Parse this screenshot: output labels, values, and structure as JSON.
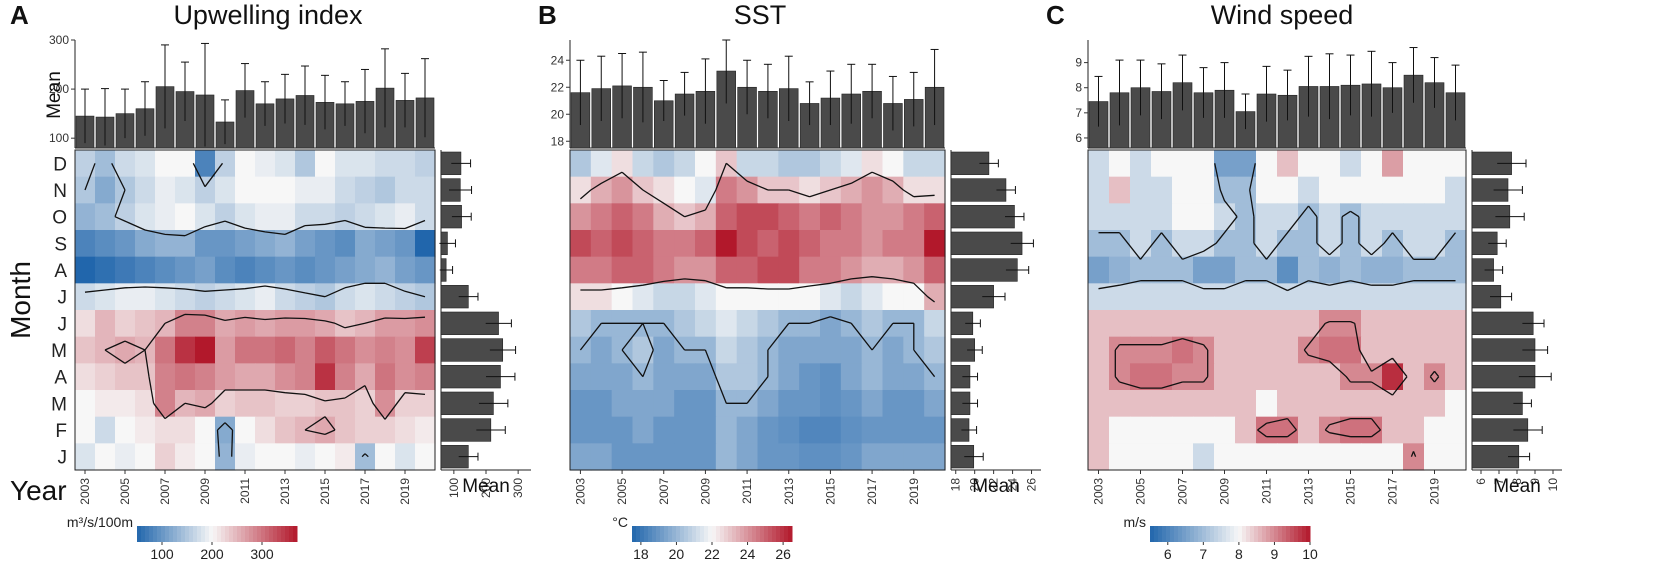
{
  "figure_labels": {
    "month_axis_label": "Month",
    "year_axis_label": "Year",
    "top_axis_label": "Mean",
    "side_axis_label": "Mean"
  },
  "chart_data": [
    {
      "letter": "A",
      "type": "heatmap",
      "title": "Upwelling index",
      "years": [
        "2003",
        "2004",
        "2005",
        "2006",
        "2007",
        "2008",
        "2009",
        "2010",
        "2011",
        "2012",
        "2013",
        "2014",
        "2015",
        "2016",
        "2017",
        "2018",
        "2019",
        "2020"
      ],
      "year_tick_labels": [
        "2003",
        "2005",
        "2007",
        "2009",
        "2011",
        "2013",
        "2015",
        "2017",
        "2019"
      ],
      "months": [
        "D",
        "N",
        "O",
        "S",
        "A",
        "J",
        "J",
        "M",
        "A",
        "M",
        "F",
        "J"
      ],
      "values": [
        [
          160,
          140,
          170,
          180,
          200,
          200,
          80,
          160,
          200,
          190,
          180,
          150,
          200,
          180,
          180,
          170,
          170,
          160
        ],
        [
          150,
          120,
          150,
          170,
          190,
          180,
          160,
          180,
          200,
          200,
          200,
          190,
          190,
          170,
          160,
          150,
          170,
          170
        ],
        [
          130,
          140,
          160,
          180,
          190,
          200,
          180,
          160,
          180,
          190,
          190,
          170,
          170,
          160,
          170,
          180,
          190,
          170
        ],
        [
          80,
          90,
          100,
          120,
          130,
          130,
          100,
          100,
          110,
          120,
          130,
          110,
          100,
          90,
          120,
          110,
          100,
          30
        ],
        [
          50,
          60,
          70,
          80,
          90,
          100,
          110,
          90,
          80,
          90,
          100,
          90,
          100,
          110,
          120,
          130,
          110,
          100
        ],
        [
          170,
          180,
          190,
          190,
          180,
          170,
          160,
          170,
          180,
          190,
          170,
          160,
          150,
          170,
          180,
          170,
          160,
          150
        ],
        [
          220,
          250,
          230,
          240,
          250,
          290,
          290,
          260,
          270,
          260,
          270,
          270,
          260,
          240,
          250,
          270,
          270,
          280
        ],
        [
          240,
          250,
          260,
          250,
          300,
          350,
          370,
          270,
          300,
          300,
          310,
          290,
          320,
          300,
          280,
          290,
          280,
          340
        ],
        [
          220,
          230,
          240,
          240,
          290,
          300,
          290,
          270,
          260,
          260,
          280,
          290,
          350,
          290,
          260,
          300,
          280,
          290
        ],
        [
          200,
          210,
          210,
          220,
          290,
          250,
          260,
          230,
          240,
          240,
          230,
          230,
          240,
          240,
          230,
          280,
          230,
          230
        ],
        [
          200,
          170,
          200,
          210,
          220,
          220,
          200,
          120,
          200,
          220,
          240,
          250,
          260,
          240,
          230,
          230,
          220,
          210
        ],
        [
          180,
          200,
          190,
          200,
          230,
          210,
          200,
          130,
          190,
          200,
          200,
          190,
          200,
          210,
          140,
          200,
          180,
          200
        ]
      ],
      "contours": [
        {
          "level": 150,
          "label": "lower contour"
        },
        {
          "level": 250,
          "label": "upper contour"
        }
      ],
      "colorscale": {
        "min": 50,
        "max": 370,
        "mid": 200,
        "low": "#2166ac",
        "midcolor": "#f7f7f7",
        "high": "#b2182b"
      },
      "legend_label": "m³/s/100m",
      "legend_ticks": [
        "100",
        "200",
        "300"
      ],
      "top_bars": {
        "ylabel": "Mean",
        "ylim": [
          80,
          300
        ],
        "ticks": [
          "100",
          "200",
          "300"
        ],
        "values": [
          145,
          143,
          150,
          160,
          205,
          195,
          188,
          133,
          197,
          170,
          180,
          187,
          173,
          170,
          175,
          202,
          177,
          182
        ],
        "errors": [
          55,
          58,
          50,
          55,
          85,
          60,
          105,
          45,
          55,
          45,
          50,
          60,
          55,
          45,
          65,
          80,
          55,
          80
        ]
      },
      "side_bars": {
        "xlabel": "Mean",
        "xlim": [
          60,
          340
        ],
        "ticks": [
          "100",
          "200",
          "300"
        ],
        "values": [
          122,
          120,
          124,
          80,
          76,
          145,
          239,
          252,
          245,
          223,
          215,
          145
        ],
        "errors": [
          30,
          35,
          30,
          25,
          20,
          30,
          40,
          40,
          45,
          45,
          45,
          30
        ]
      }
    },
    {
      "letter": "B",
      "type": "heatmap",
      "title": "SST",
      "years": [
        "2003",
        "2004",
        "2005",
        "2006",
        "2007",
        "2008",
        "2009",
        "2010",
        "2011",
        "2012",
        "2013",
        "2014",
        "2015",
        "2016",
        "2017",
        "2018",
        "2019",
        "2020"
      ],
      "year_tick_labels": [
        "2003",
        "2005",
        "2007",
        "2009",
        "2011",
        "2013",
        "2015",
        "2017",
        "2019"
      ],
      "months": [
        "D",
        "N",
        "O",
        "S",
        "A",
        "J",
        "J",
        "M",
        "A",
        "M",
        "F",
        "J"
      ],
      "values": [
        [
          20.5,
          21.5,
          22.5,
          21.0,
          20.5,
          21.0,
          22.0,
          23.0,
          21.0,
          21.0,
          20.5,
          20.5,
          21.0,
          21.5,
          22.5,
          22.0,
          21.0,
          21.0
        ],
        [
          22.5,
          23.5,
          24.0,
          23.0,
          22.5,
          22.0,
          21.5,
          24.5,
          24.0,
          23.0,
          23.0,
          22.5,
          23.0,
          23.5,
          24.0,
          23.5,
          22.5,
          22.5
        ],
        [
          24.0,
          24.5,
          25.0,
          24.5,
          23.5,
          23.0,
          23.5,
          25.0,
          25.5,
          25.5,
          25.0,
          24.5,
          25.0,
          24.5,
          24.0,
          24.0,
          24.5,
          25.0
        ],
        [
          25.5,
          25.0,
          25.5,
          25.0,
          24.5,
          24.5,
          25.0,
          26.5,
          25.5,
          25.0,
          25.5,
          25.0,
          24.5,
          24.5,
          24.0,
          24.5,
          24.5,
          26.5
        ],
        [
          24.5,
          24.5,
          25.0,
          25.0,
          24.5,
          24.0,
          24.0,
          25.0,
          25.0,
          25.5,
          25.5,
          24.5,
          24.5,
          24.0,
          23.5,
          23.5,
          24.0,
          25.0
        ],
        [
          22.5,
          22.5,
          22.0,
          21.5,
          21.0,
          21.0,
          21.5,
          22.0,
          22.0,
          22.0,
          22.0,
          22.0,
          21.5,
          21.0,
          21.5,
          22.0,
          22.0,
          23.5
        ],
        [
          20.5,
          20.0,
          20.0,
          20.0,
          20.0,
          20.5,
          21.0,
          21.5,
          21.0,
          20.5,
          20.0,
          20.0,
          19.5,
          20.0,
          20.5,
          20.0,
          20.0,
          21.0
        ],
        [
          20.0,
          19.5,
          20.0,
          20.5,
          19.5,
          20.0,
          20.0,
          21.0,
          20.5,
          20.0,
          19.5,
          19.5,
          19.5,
          19.5,
          20.0,
          19.5,
          20.0,
          20.5
        ],
        [
          19.5,
          19.5,
          19.5,
          20.0,
          19.5,
          19.5,
          19.5,
          20.5,
          20.5,
          20.0,
          19.5,
          19.0,
          18.8,
          19.5,
          20.0,
          19.5,
          19.5,
          20.0
        ],
        [
          19.0,
          19.0,
          19.5,
          19.5,
          19.5,
          19.0,
          19.0,
          20.0,
          20.0,
          19.5,
          19.0,
          19.0,
          18.8,
          19.0,
          19.5,
          19.0,
          19.0,
          19.5
        ],
        [
          19.0,
          19.0,
          19.0,
          19.5,
          19.0,
          19.0,
          19.0,
          20.0,
          19.5,
          19.0,
          18.8,
          18.5,
          18.5,
          18.8,
          19.0,
          19.0,
          19.0,
          19.0
        ],
        [
          19.5,
          19.5,
          19.0,
          19.0,
          19.0,
          19.0,
          19.0,
          20.0,
          19.5,
          19.0,
          19.0,
          18.8,
          18.8,
          19.0,
          19.5,
          19.5,
          19.5,
          19.5
        ]
      ],
      "contours": [
        {
          "level": 20,
          "label": "lower contour"
        },
        {
          "level": 23,
          "label": "upper contour"
        }
      ],
      "colorscale": {
        "min": 17.5,
        "max": 26.5,
        "mid": 22,
        "low": "#2166ac",
        "midcolor": "#f7f7f7",
        "high": "#b2182b"
      },
      "legend_label": "°C",
      "legend_ticks": [
        "18",
        "20",
        "22",
        "24",
        "26"
      ],
      "top_bars": {
        "ylabel": "",
        "ylim": [
          17.5,
          25.5
        ],
        "ticks": [
          "18",
          "20",
          "22",
          "24"
        ],
        "values": [
          21.6,
          21.9,
          22.1,
          22.0,
          21.0,
          21.5,
          21.7,
          23.2,
          22.0,
          21.7,
          21.9,
          20.8,
          21.2,
          21.5,
          21.7,
          20.8,
          21.1,
          22.0
        ],
        "errors": [
          2.4,
          2.4,
          2.4,
          2.6,
          1.5,
          1.6,
          2.4,
          2.4,
          2.0,
          2.0,
          2.4,
          1.6,
          2.0,
          2.2,
          2.0,
          2.0,
          2.0,
          2.8
        ]
      },
      "side_bars": {
        "xlabel": "Mean",
        "xlim": [
          17.5,
          27
        ],
        "ticks": [
          "18",
          "20",
          "22",
          "24",
          "26"
        ],
        "values": [
          21.5,
          23.3,
          24.2,
          25.0,
          24.5,
          22.0,
          19.8,
          20.0,
          19.5,
          19.5,
          19.4,
          19.9
        ],
        "errors": [
          1.0,
          1.0,
          1.0,
          1.2,
          1.2,
          1.2,
          0.8,
          0.8,
          0.8,
          0.8,
          0.8,
          1.0
        ]
      }
    },
    {
      "letter": "C",
      "type": "heatmap",
      "title": "Wind speed",
      "years": [
        "2003",
        "2004",
        "2005",
        "2006",
        "2007",
        "2008",
        "2009",
        "2010",
        "2011",
        "2012",
        "2013",
        "2014",
        "2015",
        "2016",
        "2017",
        "2018",
        "2019",
        "2020"
      ],
      "year_tick_labels": [
        "2003",
        "2005",
        "2007",
        "2009",
        "2011",
        "2013",
        "2015",
        "2017",
        "2019"
      ],
      "months": [
        "D",
        "N",
        "O",
        "S",
        "A",
        "J",
        "J",
        "M",
        "A",
        "M",
        "F",
        "J"
      ],
      "values": [
        [
          7.5,
          8.0,
          7.5,
          8.0,
          8.0,
          8.0,
          6.5,
          6.5,
          8.0,
          8.5,
          8.0,
          8.0,
          7.5,
          8.0,
          8.8,
          8.0,
          8.0,
          8.0
        ],
        [
          7.5,
          8.5,
          7.5,
          7.5,
          8.0,
          8.0,
          7.0,
          7.0,
          8.0,
          8.0,
          7.5,
          8.0,
          8.0,
          8.0,
          8.0,
          8.0,
          8.0,
          7.5
        ],
        [
          7.5,
          7.5,
          7.5,
          7.5,
          8.0,
          8.0,
          7.5,
          7.0,
          7.5,
          7.5,
          7.0,
          7.5,
          7.0,
          7.5,
          7.5,
          7.5,
          7.5,
          7.5
        ],
        [
          7.0,
          7.0,
          7.5,
          7.0,
          7.5,
          7.5,
          7.0,
          7.0,
          7.5,
          7.0,
          7.0,
          7.5,
          7.0,
          7.5,
          7.0,
          7.5,
          7.5,
          7.0
        ],
        [
          6.5,
          6.8,
          7.0,
          7.0,
          7.0,
          6.5,
          6.5,
          7.0,
          7.0,
          6.2,
          7.0,
          6.8,
          7.0,
          6.8,
          6.8,
          7.0,
          7.0,
          7.0
        ],
        [
          7.5,
          7.5,
          7.5,
          7.5,
          7.5,
          7.5,
          7.5,
          7.5,
          7.5,
          7.5,
          7.5,
          7.5,
          7.5,
          7.5,
          7.5,
          7.5,
          7.5,
          7.5
        ],
        [
          8.5,
          8.5,
          8.5,
          8.5,
          8.5,
          8.5,
          8.5,
          8.5,
          8.5,
          8.5,
          8.5,
          9.0,
          9.0,
          8.5,
          8.5,
          8.5,
          8.5,
          8.5
        ],
        [
          8.5,
          9.0,
          9.0,
          9.0,
          9.2,
          9.0,
          8.5,
          8.5,
          8.5,
          8.5,
          9.0,
          9.2,
          9.2,
          8.5,
          8.5,
          8.5,
          8.5,
          8.5
        ],
        [
          8.5,
          9.0,
          9.2,
          9.2,
          9.0,
          9.0,
          8.5,
          8.5,
          8.5,
          8.5,
          8.5,
          8.5,
          9.0,
          9.0,
          9.8,
          8.5,
          9.0,
          8.5
        ],
        [
          8.5,
          8.5,
          8.5,
          8.5,
          8.5,
          8.5,
          8.5,
          8.5,
          8.0,
          8.5,
          8.5,
          8.5,
          8.5,
          8.5,
          8.5,
          8.5,
          8.5,
          8.0
        ],
        [
          8.5,
          8.0,
          8.0,
          8.0,
          8.0,
          8.0,
          8.0,
          8.5,
          9.2,
          9.2,
          8.5,
          9.0,
          9.2,
          9.2,
          8.5,
          8.5,
          8.0,
          8.0
        ],
        [
          8.5,
          8.0,
          8.0,
          8.0,
          8.0,
          7.5,
          8.0,
          8.0,
          8.0,
          8.0,
          8.0,
          8.0,
          8.0,
          8.0,
          8.0,
          9.0,
          8.0,
          8.0
        ]
      ],
      "contours": [
        {
          "level": 7.2,
          "label": "lower contour"
        },
        {
          "level": 8.9,
          "label": "upper contour"
        }
      ],
      "colorscale": {
        "min": 5.5,
        "max": 10,
        "mid": 8,
        "low": "#2166ac",
        "midcolor": "#f7f7f7",
        "high": "#b2182b"
      },
      "legend_label": "m/s",
      "legend_ticks": [
        "6",
        "7",
        "8",
        "9",
        "10"
      ],
      "top_bars": {
        "ylabel": "",
        "ylim": [
          5.6,
          9.9
        ],
        "ticks": [
          "6",
          "7",
          "8",
          "9"
        ],
        "values": [
          7.45,
          7.8,
          8.0,
          7.85,
          8.2,
          7.8,
          7.9,
          7.05,
          7.75,
          7.7,
          8.05,
          8.05,
          8.1,
          8.15,
          8.0,
          8.5,
          8.2,
          7.8
        ],
        "errors": [
          1.0,
          1.3,
          1.1,
          1.1,
          1.1,
          1.0,
          1.1,
          0.7,
          1.1,
          1.0,
          1.2,
          1.3,
          1.2,
          1.3,
          1.0,
          1.1,
          1.0,
          1.1
        ]
      },
      "side_bars": {
        "xlabel": "Mean",
        "xlim": [
          5.5,
          10.5
        ],
        "ticks": [
          "6",
          "7",
          "8",
          "9",
          "10"
        ],
        "values": [
          7.7,
          7.5,
          7.6,
          6.9,
          6.7,
          7.1,
          8.9,
          9.0,
          9.0,
          8.3,
          8.6,
          8.1
        ],
        "errors": [
          0.8,
          0.8,
          0.8,
          0.5,
          0.5,
          0.6,
          0.6,
          0.7,
          0.9,
          0.5,
          0.8,
          0.6
        ]
      }
    }
  ]
}
